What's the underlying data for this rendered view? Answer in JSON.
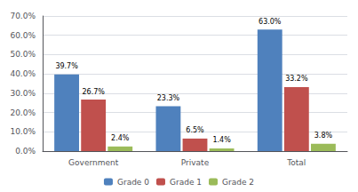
{
  "chart_data": {
    "type": "bar",
    "categories": [
      "Government",
      "Private",
      "Total"
    ],
    "series": [
      {
        "name": "Grade 0",
        "color": "#4F81BD",
        "values": [
          39.7,
          23.3,
          63.0
        ],
        "value_labels": [
          "39.7%",
          "23.3%",
          "63.0%"
        ]
      },
      {
        "name": "Grade 1",
        "color": "#C0504D",
        "values": [
          26.7,
          6.5,
          33.2
        ],
        "value_labels": [
          "26.7%",
          "6.5%",
          "33.2%"
        ]
      },
      {
        "name": "Grade 2",
        "color": "#9BBB59",
        "values": [
          2.4,
          1.4,
          3.8
        ],
        "value_labels": [
          "2.4%",
          "1.4%",
          "3.8%"
        ]
      }
    ],
    "ylim": [
      0,
      70
    ],
    "yticks": [
      {
        "value": 0,
        "label": "0.0%"
      },
      {
        "value": 10,
        "label": "10.0%"
      },
      {
        "value": 20,
        "label": "20.0%"
      },
      {
        "value": 30,
        "label": "30.0%"
      },
      {
        "value": 40,
        "label": "40.0%"
      },
      {
        "value": 50,
        "label": "50.0%"
      },
      {
        "value": 60,
        "label": "60.0%"
      },
      {
        "value": 70,
        "label": "70.0%"
      }
    ],
    "grid": true,
    "legend": "bottom",
    "data_labels": true
  }
}
